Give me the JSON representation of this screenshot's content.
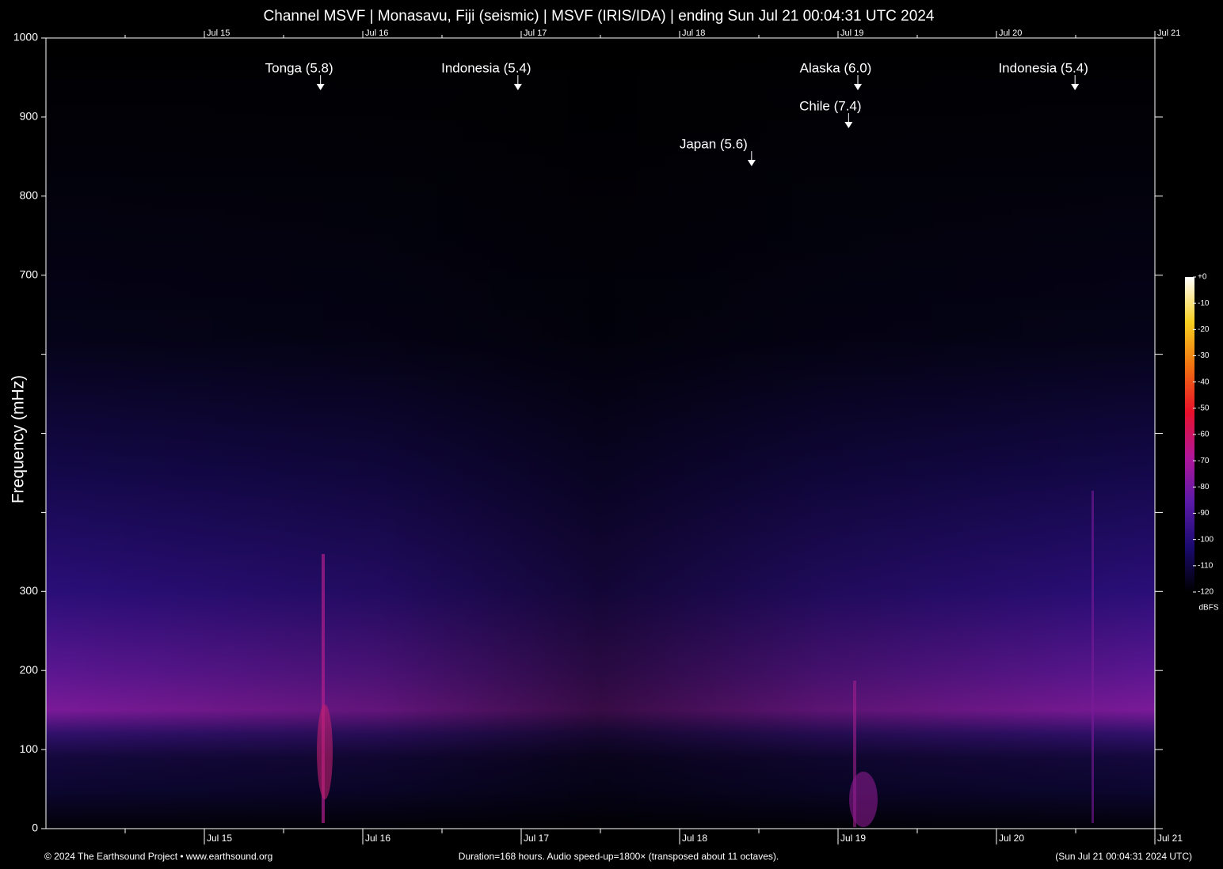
{
  "chart_data": {
    "type": "spectrogram",
    "title": "Channel MSVF | Monasavu, Fiji (seismic) | MSVF (IRIS/IDA) | ending Sun Jul 21 00:04:31 UTC 2024",
    "y_label": "Frequency (mHz)",
    "ylim": [
      0,
      1000
    ],
    "yticks": [
      0,
      100,
      200,
      300,
      700,
      800,
      900,
      1000
    ],
    "yticks_minor": [
      400,
      500,
      600
    ],
    "xlim": [
      0,
      168
    ],
    "xticks": [
      {
        "value": 24,
        "label": "Jul 15"
      },
      {
        "value": 48,
        "label": "Jul 16"
      },
      {
        "value": 72,
        "label": "Jul 17"
      },
      {
        "value": 96,
        "label": "Jul 18"
      },
      {
        "value": 120,
        "label": "Jul 19"
      },
      {
        "value": 144,
        "label": "Jul 20"
      },
      {
        "value": 168,
        "label": "Jul 21"
      }
    ],
    "xticks_minor": [
      12,
      36,
      60,
      84,
      108,
      132,
      156
    ],
    "annotations": [
      {
        "label": "Tonga (5.8)",
        "x": 41.6
      },
      {
        "label": "Indonesia (5.4)",
        "x": 71.5
      },
      {
        "label": "Japan (5.6)",
        "x": 106.9
      },
      {
        "label": "Chile (7.4)",
        "x": 121.6
      },
      {
        "label": "Alaska (6.0)",
        "x": 123
      },
      {
        "label": "Indonesia (5.4)",
        "x": 155.9
      }
    ],
    "colorbar": {
      "label": "dBFS",
      "lim": [
        -120,
        0
      ],
      "ticks": [
        {
          "value": 0,
          "label": "+0"
        },
        -10,
        -20,
        -30,
        -40,
        -50,
        -60,
        -70,
        -80,
        -90,
        -100,
        -110,
        -120
      ],
      "colors": [
        "#000000",
        "#1a0a6e",
        "#5a1aa8",
        "#b0169a",
        "#e8102a",
        "#f07010",
        "#f8d020",
        "#ffffff"
      ]
    },
    "footer_left": "© 2024 The Earthsound Project • www.earthsound.org",
    "footer_center": "Duration=168 hours. Audio speed-up=1800× (transposed about 11 octaves).",
    "footer_right": "(Sun Jul 21 00:04:31 2024 UTC)"
  }
}
